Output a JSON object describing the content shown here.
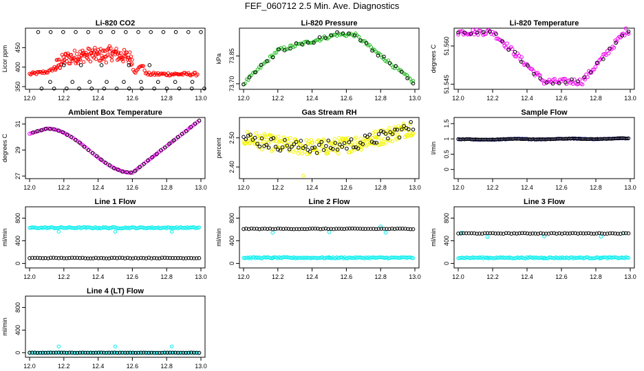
{
  "title": "FEF_060712  2.5 Min. Ave. Diagnostics",
  "colors": {
    "red": "#ff0000",
    "green": "#22bb22",
    "magenta": "#ee00ee",
    "yellow": "#f4f400",
    "blue": "#0000cc",
    "cyan": "#00eeee",
    "black": "#000000"
  },
  "chart_data": [
    {
      "id": "co2",
      "type": "scatter",
      "title": "Li-820 CO2",
      "ylabel": "Licor ppm",
      "xlim": [
        12.0,
        13.0
      ],
      "ylim": [
        343,
        500
      ],
      "yticks": [
        "350",
        "400",
        "450"
      ],
      "ytick_values": [
        350,
        400,
        450
      ],
      "xticks": [
        "12.0",
        "12.2",
        "12.4",
        "12.6",
        "12.8",
        "13.0"
      ],
      "series": [
        {
          "name": "primary",
          "color": "red"
        },
        {
          "name": "secondary",
          "color": "black"
        }
      ]
    },
    {
      "id": "pressure",
      "type": "scatter",
      "title": "Li-820 Pressure",
      "ylabel": "kPa",
      "xlim": [
        12.0,
        13.0
      ],
      "ylim": [
        73.67,
        74.0
      ],
      "yticks": [
        "73.70",
        "73.85"
      ],
      "ytick_values": [
        73.7,
        73.85
      ],
      "xticks": [
        "12.0",
        "12.2",
        "12.4",
        "12.6",
        "12.8",
        "13.0"
      ],
      "series": [
        {
          "name": "primary",
          "color": "green"
        },
        {
          "name": "secondary",
          "color": "black"
        }
      ]
    },
    {
      "id": "licor_temp",
      "type": "scatter",
      "title": "Li-820 Temperature",
      "ylabel": "degrees C",
      "xlim": [
        12.0,
        13.0
      ],
      "ylim": [
        51.543,
        51.567
      ],
      "yticks": [
        "51.545",
        "51.560"
      ],
      "ytick_values": [
        51.545,
        51.56
      ],
      "xticks": [
        "12.0",
        "12.2",
        "12.4",
        "12.6",
        "12.8",
        "13.0"
      ],
      "series": [
        {
          "name": "primary",
          "color": "magenta"
        },
        {
          "name": "secondary",
          "color": "black"
        }
      ]
    },
    {
      "id": "ambient_temp",
      "type": "scatter",
      "title": "Ambient Box Temperature",
      "ylabel": "degrees C",
      "xlim": [
        12.0,
        13.0
      ],
      "ylim": [
        26.8,
        31.5
      ],
      "yticks": [
        "27",
        "29",
        "31"
      ],
      "ytick_values": [
        27,
        29,
        31
      ],
      "xticks": [
        "12.0",
        "12.2",
        "12.4",
        "12.6",
        "12.8",
        "13.0"
      ],
      "series": [
        {
          "name": "primary",
          "color": "magenta"
        },
        {
          "name": "secondary",
          "color": "black"
        }
      ]
    },
    {
      "id": "rh",
      "type": "scatter",
      "title": "Gas Stream RH",
      "ylabel": "percent",
      "xlim": [
        12.0,
        13.0
      ],
      "ylim": [
        2.36,
        2.57
      ],
      "yticks": [
        "2.40",
        "2.50"
      ],
      "ytick_values": [
        2.4,
        2.5
      ],
      "xticks": [
        "12.0",
        "12.2",
        "12.4",
        "12.6",
        "12.8",
        "13.0"
      ],
      "series": [
        {
          "name": "primary",
          "color": "yellow"
        },
        {
          "name": "secondary",
          "color": "black"
        }
      ]
    },
    {
      "id": "sample_flow",
      "type": "scatter",
      "title": "Sample Flow",
      "ylabel": "l/min",
      "xlim": [
        12.0,
        13.0
      ],
      "ylim": [
        -0.3,
        1.7
      ],
      "yticks": [
        "0",
        "0.5",
        "1",
        "1.5"
      ],
      "ytick_values": [
        0,
        0.5,
        1.0,
        1.5
      ],
      "xticks": [
        "12.0",
        "12.2",
        "12.4",
        "12.6",
        "12.8",
        "13.0"
      ],
      "series": [
        {
          "name": "primary",
          "color": "blue"
        },
        {
          "name": "secondary",
          "color": "black"
        }
      ]
    },
    {
      "id": "line1",
      "type": "scatter",
      "title": "Line 1 Flow",
      "ylabel": "ml/min",
      "xlim": [
        12.0,
        13.0
      ],
      "ylim": [
        -80,
        1000
      ],
      "yticks": [
        "0",
        "400",
        "800"
      ],
      "ytick_values": [
        0,
        400,
        800
      ],
      "xticks": [
        "12.0",
        "12.2",
        "12.4",
        "12.6",
        "12.8",
        "13.0"
      ],
      "series": [
        {
          "name": "primary",
          "color": "cyan"
        },
        {
          "name": "secondary",
          "color": "black"
        }
      ]
    },
    {
      "id": "line2",
      "type": "scatter",
      "title": "Line 2 Flow",
      "ylabel": "ml/min",
      "xlim": [
        12.0,
        13.0
      ],
      "ylim": [
        -80,
        1000
      ],
      "yticks": [
        "0",
        "400",
        "800"
      ],
      "ytick_values": [
        0,
        400,
        800
      ],
      "xticks": [
        "12.0",
        "12.2",
        "12.4",
        "12.6",
        "12.8",
        "13.0"
      ],
      "series": [
        {
          "name": "primary",
          "color": "cyan"
        },
        {
          "name": "secondary",
          "color": "black"
        }
      ]
    },
    {
      "id": "line3",
      "type": "scatter",
      "title": "Line 3 Flow",
      "ylabel": "ml/min",
      "xlim": [
        12.0,
        13.0
      ],
      "ylim": [
        -80,
        1000
      ],
      "yticks": [
        "0",
        "400",
        "800"
      ],
      "ytick_values": [
        0,
        400,
        800
      ],
      "xticks": [
        "12.0",
        "12.2",
        "12.4",
        "12.6",
        "12.8",
        "13.0"
      ],
      "series": [
        {
          "name": "primary",
          "color": "cyan"
        },
        {
          "name": "secondary",
          "color": "black"
        }
      ]
    },
    {
      "id": "line4",
      "type": "scatter",
      "title": "Line 4 (LT) Flow",
      "ylabel": "ml/min",
      "xlim": [
        12.0,
        13.0
      ],
      "ylim": [
        -80,
        1000
      ],
      "yticks": [
        "0",
        "400",
        "800"
      ],
      "ytick_values": [
        0,
        400,
        800
      ],
      "xticks": [
        "12.0",
        "12.2",
        "12.4",
        "12.6",
        "12.8",
        "13.0"
      ],
      "series": [
        {
          "name": "primary",
          "color": "cyan"
        },
        {
          "name": "secondary",
          "color": "black"
        }
      ]
    }
  ]
}
